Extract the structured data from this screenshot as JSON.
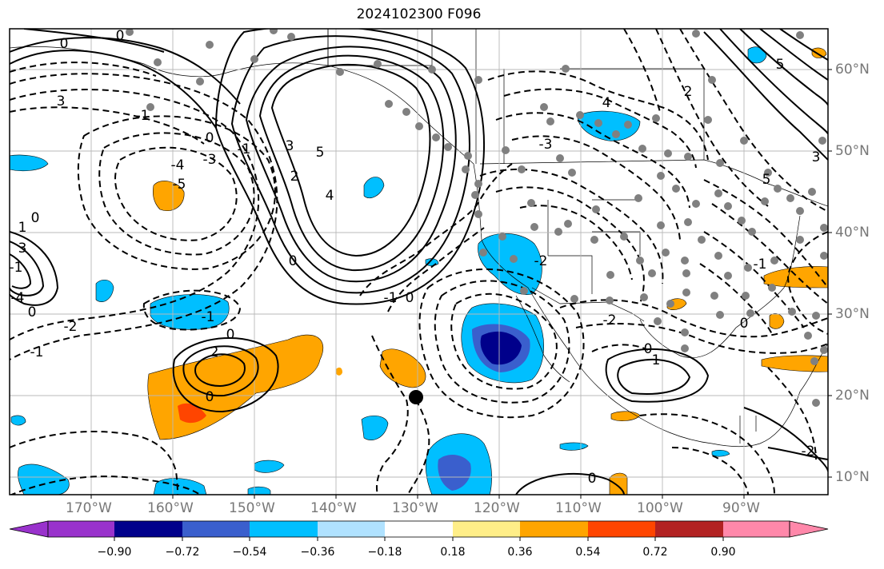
{
  "title": "2024102300 F096",
  "latitude_labels": [
    "60°N",
    "50°N",
    "40°N",
    "30°N",
    "20°N",
    "10°N"
  ],
  "longitude_labels": [
    "170°W",
    "160°W",
    "150°W",
    "140°W",
    "130°W",
    "120°W",
    "110°W",
    "100°W",
    "90°W"
  ],
  "colorbar": {
    "tick_labels": [
      "−0.90",
      "−0.72",
      "−0.54",
      "−0.36",
      "−0.18",
      "0.18",
      "0.36",
      "0.54",
      "0.72",
      "0.90"
    ],
    "colors": [
      "#9932cc",
      "#00008b",
      "#3a5fcd",
      "#00bfff",
      "#b0e2ff",
      "#ffffff",
      "#ffee88",
      "#ffa500",
      "#ff4500",
      "#b22222",
      "#ff88aa"
    ]
  },
  "contour_labels": [
    "0",
    "3",
    "0",
    "-1",
    "-3",
    "-4",
    "-5",
    "0",
    "-1",
    "3",
    "5",
    "2",
    "4",
    "0",
    "-1",
    "0",
    "-3",
    "4",
    "-2",
    "0",
    "-1",
    "2",
    "0",
    "1",
    "-2",
    "0",
    "5",
    "-1",
    "1",
    "3",
    "-4",
    "-1",
    "0",
    "-2",
    "0",
    "0",
    "-2",
    "-1",
    "5",
    "2",
    "3",
    "0"
  ],
  "legend_colors": {
    "station": "#808080",
    "storm_marker": "#000000",
    "contour": "#000000"
  }
}
